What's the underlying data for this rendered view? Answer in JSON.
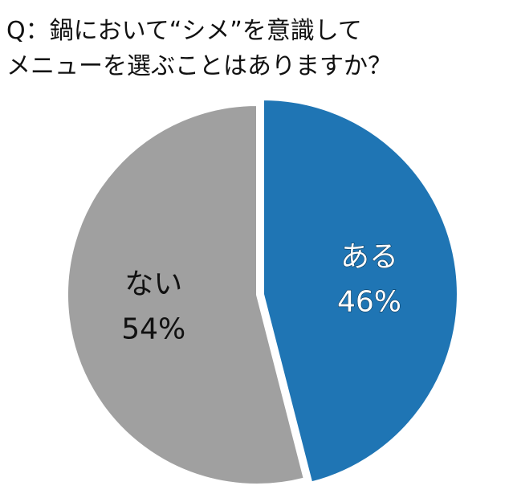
{
  "chart_data": {
    "type": "pie",
    "title": [
      "Q：鍋において“シメ”を意識して",
      "メニューを選ぶことはありますか？"
    ],
    "categories": [
      "ある",
      "ない"
    ],
    "values": [
      46,
      54
    ],
    "value_labels": [
      "46%",
      "54%"
    ],
    "colors": [
      "#1f75b4",
      "#a0a0a0"
    ],
    "label_colors": [
      "#ffffff",
      "#111111"
    ]
  }
}
